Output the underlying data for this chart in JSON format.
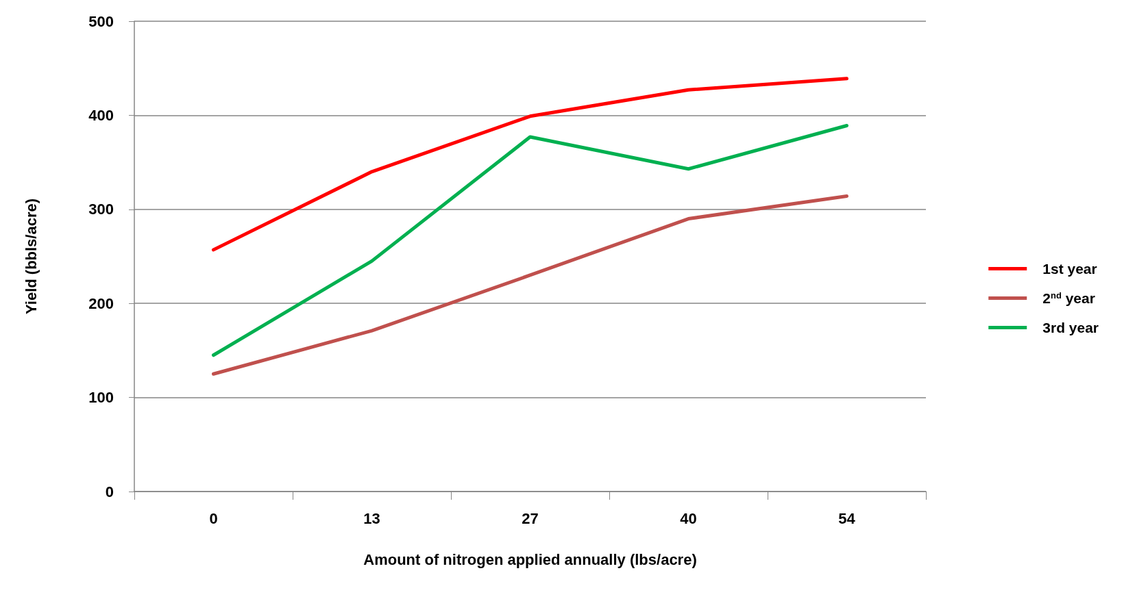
{
  "chart_data": {
    "type": "line",
    "xlabel": "Amount of nitrogen applied annually (lbs/acre)",
    "ylabel": "Yield (bbls/acre)",
    "categories": [
      "0",
      "13",
      "27",
      "40",
      "54"
    ],
    "series": [
      {
        "name": "1st year",
        "color": "#ff0000",
        "values": [
          257,
          340,
          399,
          427,
          439
        ]
      },
      {
        "name": "2$^{nd}$ year",
        "color": "#c0504d",
        "values": [
          125,
          171,
          230,
          290,
          314
        ]
      },
      {
        "name": "3rd year",
        "color": "#00b050",
        "values": [
          145,
          245,
          377,
          343,
          389
        ]
      }
    ],
    "ylim": [
      0,
      500
    ],
    "yticks": [
      0,
      100,
      200,
      300,
      400,
      500
    ],
    "grid": "y",
    "legend": "right",
    "marker": "none",
    "line_style": "solid"
  }
}
